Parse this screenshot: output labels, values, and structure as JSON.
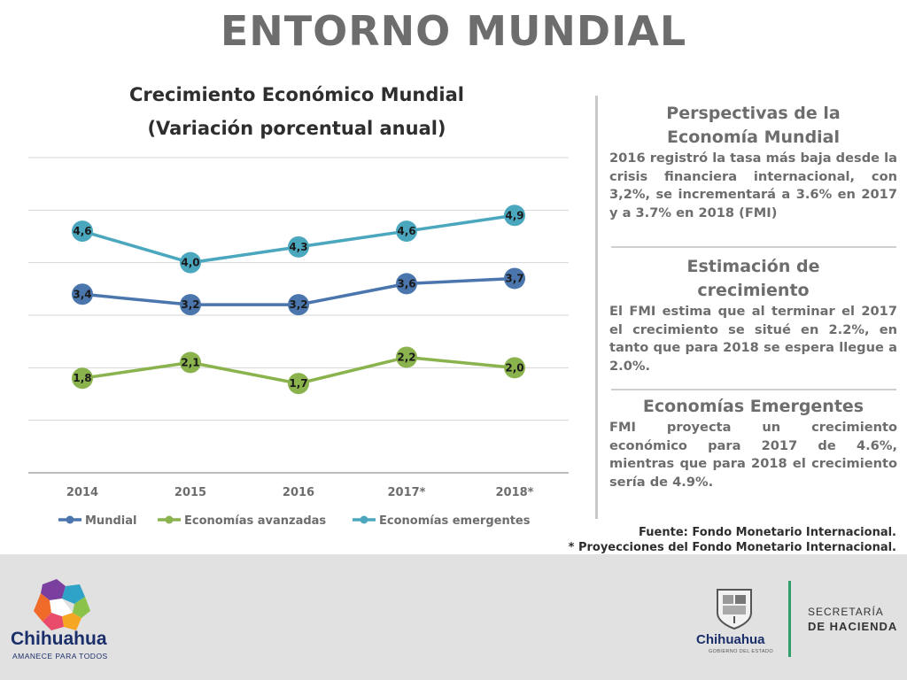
{
  "page": {
    "title": "ENTORNO MUNDIAL"
  },
  "chart_data": {
    "type": "line",
    "title": "Crecimiento Económico Mundial",
    "subtitle": "(Variación porcentual anual)",
    "categories": [
      "2014",
      "2015",
      "2016",
      "2017*",
      "2018*"
    ],
    "series": [
      {
        "name": "Mundial",
        "color": "#4a76ad",
        "values": [
          3.4,
          3.2,
          3.2,
          3.6,
          3.7
        ],
        "labels": [
          "3,4",
          "3,2",
          "3,2",
          "3,6",
          "3,7"
        ]
      },
      {
        "name": "Economías avanzadas",
        "color": "#8ab24d",
        "values": [
          1.8,
          2.1,
          1.7,
          2.2,
          2.0
        ],
        "labels": [
          "1,8",
          "2,1",
          "1,7",
          "2,2",
          "2,0"
        ]
      },
      {
        "name": "Economías emergentes",
        "color": "#4aa7be",
        "values": [
          4.6,
          4.0,
          4.3,
          4.6,
          4.9
        ],
        "labels": [
          "4,6",
          "4,0",
          "4,3",
          "4,6",
          "4,9"
        ]
      }
    ],
    "ylim": [
      0,
      6
    ],
    "grid": true,
    "legend": "bottom"
  },
  "panels": [
    {
      "heading_line1": "Perspectivas de la",
      "heading_line2": "Economía Mundial",
      "text": "2016 registró la tasa más baja desde la crisis financiera internacional, con 3,2%, se incrementará a 3.6% en 2017 y a 3.7% en 2018 (FMI)"
    },
    {
      "heading_line1": "Estimación de",
      "heading_line2": "crecimiento",
      "text": "El FMI estima que al terminar el 2017 el crecimiento se situé en 2.2%, en tanto que para 2018 se espera llegue a 2.0%."
    },
    {
      "heading_line1": "Economías Emergentes",
      "text": "FMI proyecta un crecimiento económico para 2017 de 4.6%, mientras que para 2018 el crecimiento sería de 4.9%."
    }
  ],
  "source": {
    "line1": "Fuente: Fondo Monetario Internacional.",
    "line2": "* Proyecciones del Fondo Monetario Internacional."
  },
  "footer": {
    "left_brand": "Chihuahua",
    "left_tagline": "AMANECE PARA TODOS",
    "right_brand": "Chihuahua",
    "right_sub": "GOBIERNO DEL ESTADO",
    "secretaria": "SECRETARÍA",
    "hacienda": "DE HACIENDA"
  },
  "colors": {
    "title_gray": "#6d6d6d",
    "footer_bg": "#e1e1e1",
    "brand_blue": "#1b2f6a",
    "accent_green": "#2f9e6a"
  }
}
